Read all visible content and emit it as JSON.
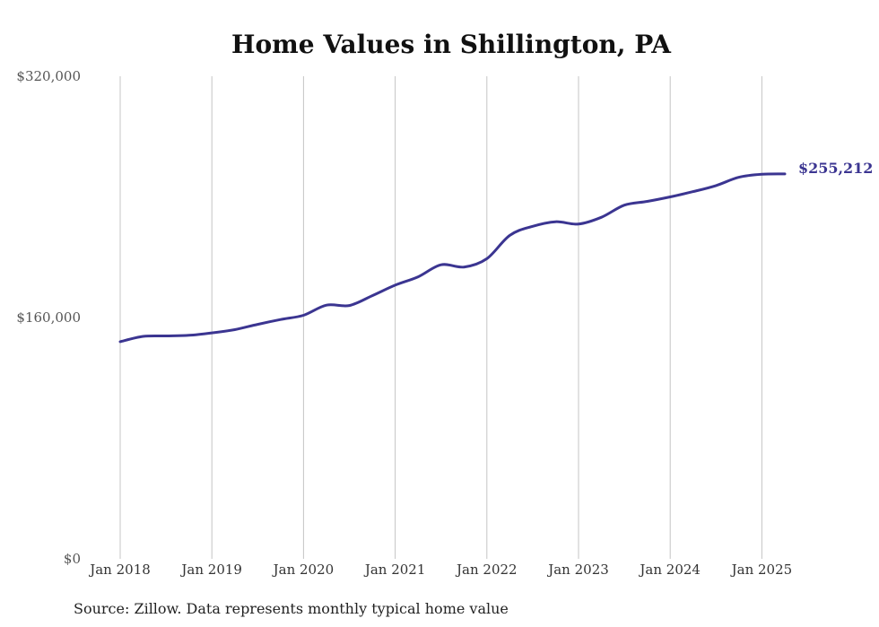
{
  "chart_data": {
    "type": "line",
    "title": "Home Values in Shillington, PA",
    "xlabel": "",
    "ylabel": "",
    "ylim": [
      0,
      320000
    ],
    "y_ticks": [
      {
        "value": 0,
        "label": "$0"
      },
      {
        "value": 160000,
        "label": "$160,000"
      },
      {
        "value": 320000,
        "label": "$320,000"
      }
    ],
    "x_ticks": [
      {
        "value": "2018-01",
        "label": "Jan 2018"
      },
      {
        "value": "2019-01",
        "label": "Jan 2019"
      },
      {
        "value": "2020-01",
        "label": "Jan 2020"
      },
      {
        "value": "2021-01",
        "label": "Jan 2021"
      },
      {
        "value": "2022-01",
        "label": "Jan 2022"
      },
      {
        "value": "2023-01",
        "label": "Jan 2023"
      },
      {
        "value": "2024-01",
        "label": "Jan 2024"
      },
      {
        "value": "2025-01",
        "label": "Jan 2025"
      }
    ],
    "grid": {
      "vertical": true,
      "horizontal": false
    },
    "series": [
      {
        "color": "#3b3591",
        "end_label": "$255,212",
        "points": [
          {
            "x": "2018-01",
            "y": 144000
          },
          {
            "x": "2018-04",
            "y": 147500
          },
          {
            "x": "2018-07",
            "y": 147800
          },
          {
            "x": "2018-10",
            "y": 148200
          },
          {
            "x": "2019-01",
            "y": 149800
          },
          {
            "x": "2019-04",
            "y": 152000
          },
          {
            "x": "2019-07",
            "y": 155500
          },
          {
            "x": "2019-10",
            "y": 158700
          },
          {
            "x": "2020-01",
            "y": 161500
          },
          {
            "x": "2020-04",
            "y": 168200
          },
          {
            "x": "2020-07",
            "y": 168000
          },
          {
            "x": "2020-10",
            "y": 174500
          },
          {
            "x": "2021-01",
            "y": 181500
          },
          {
            "x": "2021-04",
            "y": 187000
          },
          {
            "x": "2021-07",
            "y": 195000
          },
          {
            "x": "2021-10",
            "y": 193500
          },
          {
            "x": "2022-01",
            "y": 199000
          },
          {
            "x": "2022-04",
            "y": 214500
          },
          {
            "x": "2022-07",
            "y": 220500
          },
          {
            "x": "2022-10",
            "y": 223500
          },
          {
            "x": "2023-01",
            "y": 222000
          },
          {
            "x": "2023-04",
            "y": 226500
          },
          {
            "x": "2023-07",
            "y": 234500
          },
          {
            "x": "2023-10",
            "y": 237000
          },
          {
            "x": "2024-01",
            "y": 240000
          },
          {
            "x": "2024-04",
            "y": 243500
          },
          {
            "x": "2024-07",
            "y": 247500
          },
          {
            "x": "2024-10",
            "y": 253000
          },
          {
            "x": "2025-01",
            "y": 255000
          },
          {
            "x": "2025-04",
            "y": 255212
          }
        ]
      }
    ]
  },
  "source_note": "Source: Zillow. Data represents monthly typical home value"
}
